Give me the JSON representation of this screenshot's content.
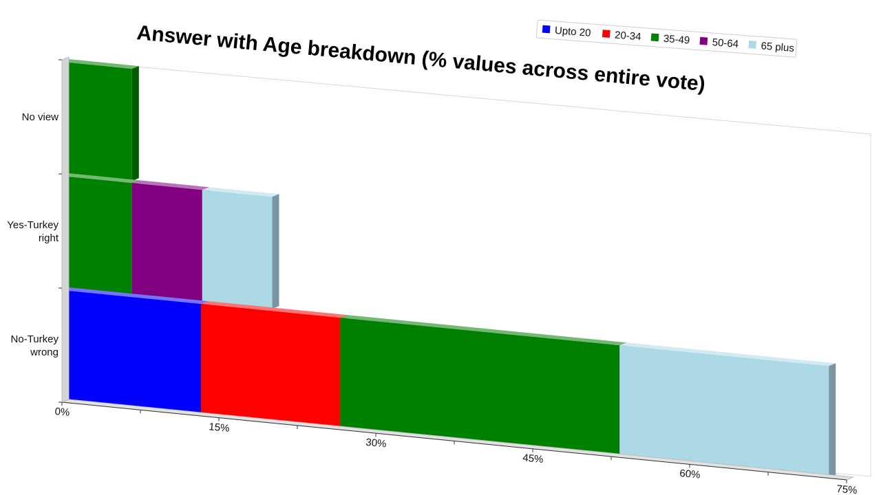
{
  "chart_data": {
    "type": "bar",
    "orientation": "horizontal",
    "stacked": true,
    "three_d": true,
    "title": "Answer with Age breakdown (% values across entire vote)",
    "categories": [
      "No view",
      "Yes-Turkey right",
      "No-Turkey wrong"
    ],
    "series": [
      {
        "name": "Upto 20",
        "color": "#0000ff",
        "values": [
          0,
          0,
          13.3
        ]
      },
      {
        "name": "20-34",
        "color": "#ff0000",
        "values": [
          0,
          0,
          13.3
        ]
      },
      {
        "name": "35-49",
        "color": "#008000",
        "values": [
          6.7,
          6.7,
          26.7
        ]
      },
      {
        "name": "50-64",
        "color": "#800080",
        "values": [
          0,
          6.7,
          0
        ]
      },
      {
        "name": "65 plus",
        "color": "#add8e6",
        "values": [
          0,
          6.7,
          20.0
        ]
      }
    ],
    "xlim": [
      0,
      75
    ],
    "x_ticks": [
      "0%",
      "15%",
      "30%",
      "45%",
      "60%",
      "75%"
    ],
    "legend_position": "top-right",
    "grid": false
  }
}
